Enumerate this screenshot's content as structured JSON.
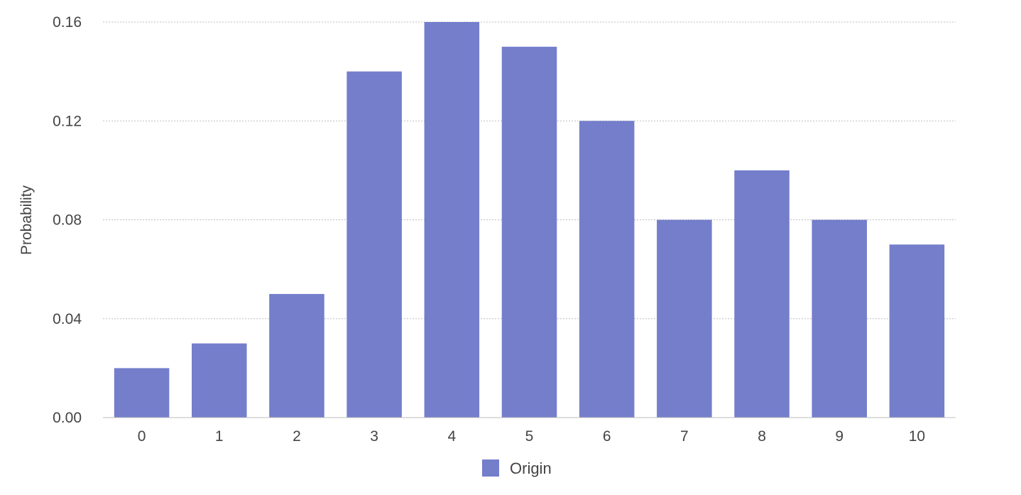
{
  "chart_data": {
    "type": "bar",
    "title": "",
    "xlabel": "",
    "ylabel": "Probability",
    "categories": [
      "0",
      "1",
      "2",
      "3",
      "4",
      "5",
      "6",
      "7",
      "8",
      "9",
      "10"
    ],
    "series": [
      {
        "name": "Origin",
        "values": [
          0.02,
          0.03,
          0.05,
          0.14,
          0.16,
          0.15,
          0.12,
          0.08,
          0.1,
          0.08,
          0.07
        ],
        "color": "#747ecb"
      }
    ],
    "ylim": [
      0,
      0.16
    ],
    "yticks": [
      "0.00",
      "0.04",
      "0.08",
      "0.12",
      "0.16"
    ],
    "ytick_values": [
      0,
      0.04,
      0.08,
      0.12,
      0.16
    ],
    "grid": true,
    "legend_position": "bottom-center",
    "colors": {
      "grid": "#bdbdbd",
      "axis": "#bdbdbd",
      "text": "#444444"
    }
  }
}
